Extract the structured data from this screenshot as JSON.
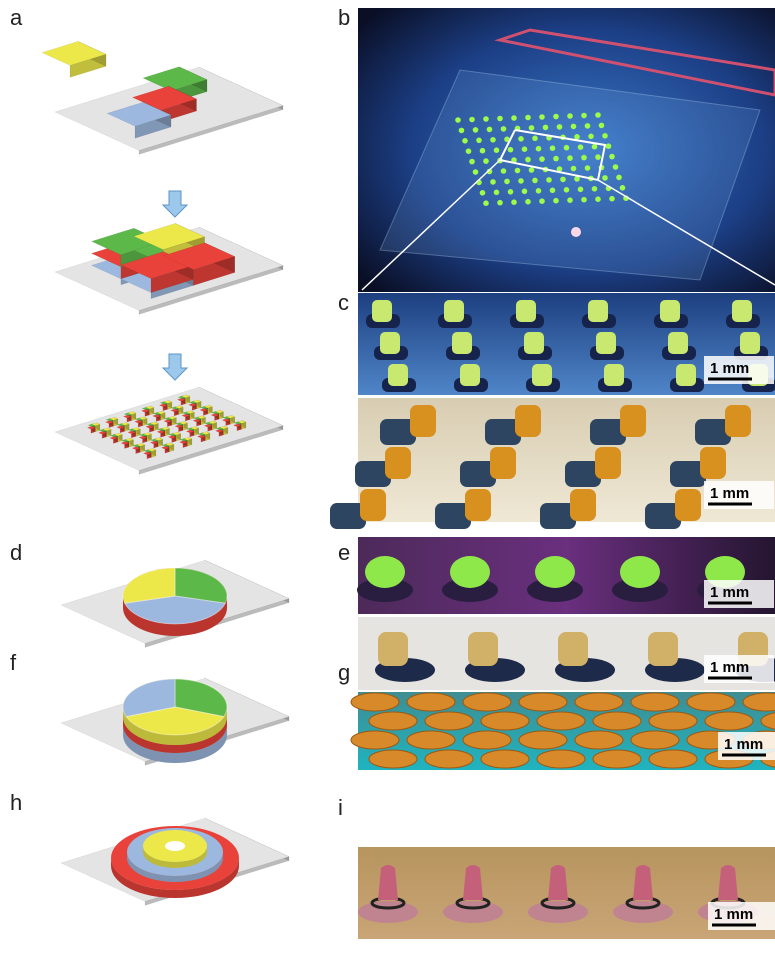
{
  "panel_labels": [
    "a",
    "b",
    "c",
    "d",
    "e",
    "f",
    "g",
    "h",
    "i"
  ],
  "scale_bars": [
    "1 mm",
    "1 mm",
    "1 mm",
    "1 mm",
    "1 mm",
    "1 mm"
  ]
}
